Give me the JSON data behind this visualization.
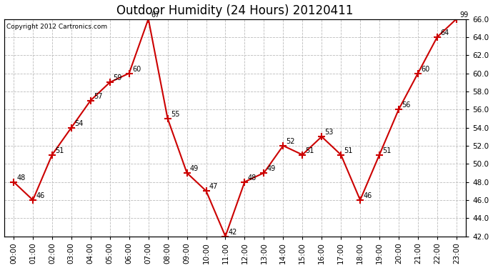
{
  "title": "Outdoor Humidity (24 Hours) 20120411",
  "copyright": "Copyright 2012 Cartronics.com",
  "hours": [
    "00:00",
    "01:00",
    "02:00",
    "03:00",
    "04:00",
    "05:00",
    "06:00",
    "07:00",
    "08:00",
    "09:00",
    "10:00",
    "11:00",
    "12:00",
    "13:00",
    "14:00",
    "15:00",
    "16:00",
    "17:00",
    "18:00",
    "19:00",
    "20:00",
    "21:00",
    "22:00",
    "23:00"
  ],
  "values": [
    48,
    46,
    51,
    54,
    57,
    59,
    60,
    67,
    55,
    49,
    47,
    42,
    48,
    49,
    52,
    51,
    53,
    51,
    46,
    51,
    56,
    60,
    64,
    99
  ],
  "values_clipped": [
    48,
    46,
    51,
    54,
    57,
    59,
    60,
    66,
    55,
    49,
    47,
    42,
    48,
    49,
    52,
    51,
    53,
    51,
    46,
    51,
    56,
    60,
    64,
    66
  ],
  "ylim_min": 42.0,
  "ylim_max": 66.0,
  "yticks": [
    42.0,
    44.0,
    46.0,
    48.0,
    50.0,
    52.0,
    54.0,
    56.0,
    58.0,
    60.0,
    62.0,
    64.0,
    66.0
  ],
  "line_color": "#cc0000",
  "marker_color": "#cc0000",
  "bg_color": "white",
  "grid_color": "#bbbbbb",
  "title_fontsize": 12,
  "label_fontsize": 7.5,
  "annot_fontsize": 7
}
